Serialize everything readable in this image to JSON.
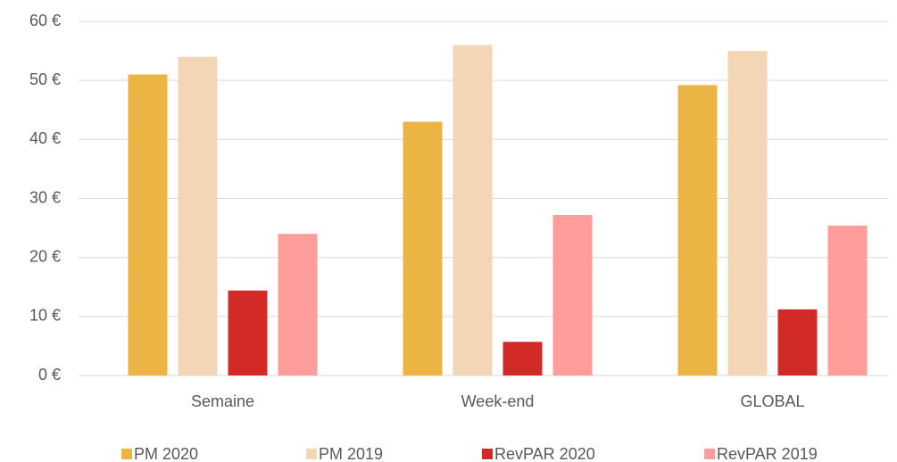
{
  "chart_data": {
    "type": "bar",
    "categories": [
      "Semaine",
      "Week-end",
      "GLOBAL"
    ],
    "series": [
      {
        "name": "PM 2020",
        "color": "#ebb444",
        "values": [
          51,
          43,
          49.2
        ]
      },
      {
        "name": "PM 2019",
        "color": "#f2d6b5",
        "values": [
          54,
          56,
          55
        ]
      },
      {
        "name": "RevPAR 2020",
        "color": "#d12a27",
        "values": [
          14.4,
          5.7,
          11.2
        ]
      },
      {
        "name": "RevPAR 2019",
        "color": "#ff9d9a",
        "values": [
          24,
          27.2,
          25.4
        ]
      }
    ],
    "ylim": [
      0,
      60
    ],
    "yticks": [
      {
        "value": 0,
        "label": "0 €"
      },
      {
        "value": 10,
        "label": "10 €"
      },
      {
        "value": 20,
        "label": "20 €"
      },
      {
        "value": 30,
        "label": "30 €"
      },
      {
        "value": 40,
        "label": "40 €"
      },
      {
        "value": 50,
        "label": "50 €"
      },
      {
        "value": 60,
        "label": "60 €"
      }
    ],
    "grid": true,
    "legend": "bottom"
  }
}
